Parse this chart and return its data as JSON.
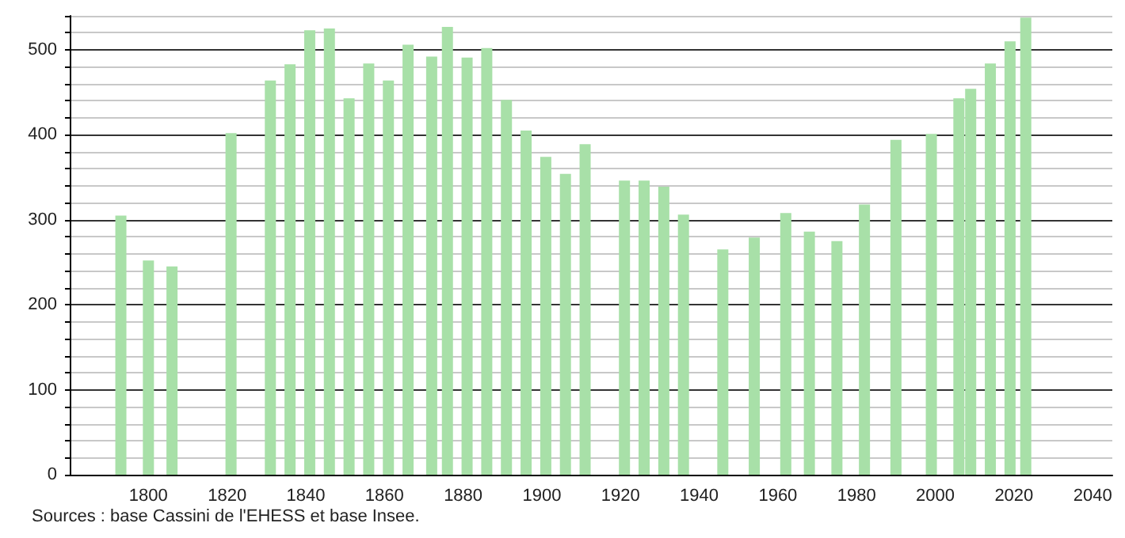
{
  "chart_data": {
    "type": "bar",
    "x": [
      1793,
      1800,
      1806,
      1821,
      1831,
      1836,
      1841,
      1846,
      1851,
      1856,
      1861,
      1866,
      1872,
      1876,
      1881,
      1886,
      1891,
      1896,
      1901,
      1906,
      1911,
      1921,
      1926,
      1931,
      1936,
      1946,
      1954,
      1962,
      1968,
      1975,
      1982,
      1990,
      1999,
      2006,
      2009,
      2014,
      2019,
      2023
    ],
    "values": [
      305,
      252,
      245,
      402,
      464,
      483,
      523,
      525,
      443,
      484,
      464,
      506,
      492,
      527,
      491,
      502,
      441,
      405,
      374,
      354,
      389,
      346,
      346,
      339,
      306,
      265,
      279,
      308,
      286,
      275,
      318,
      394,
      401,
      443,
      454,
      484,
      510,
      538
    ],
    "color": "#a8e0a8",
    "xlim": [
      1780,
      2045
    ],
    "xticks": [
      1800,
      1820,
      1840,
      1860,
      1880,
      1900,
      1920,
      1940,
      1960,
      1980,
      2000,
      2020,
      2040
    ],
    "ylim": [
      0,
      540
    ],
    "yticks": [
      0,
      {
        "value": 20,
        "label": null
      },
      {
        "value": 40,
        "label": null
      },
      {
        "value": 60,
        "label": null
      },
      {
        "value": 80,
        "label": null
      },
      100,
      {
        "value": 120,
        "label": null
      },
      {
        "value": 140,
        "label": null
      },
      {
        "value": 160,
        "label": null
      },
      {
        "value": 180,
        "label": null
      },
      200,
      {
        "value": 220,
        "label": null
      },
      {
        "value": 240,
        "label": null
      },
      {
        "value": 260,
        "label": null
      },
      {
        "value": 280,
        "label": null
      },
      300,
      {
        "value": 320,
        "label": null
      },
      {
        "value": 340,
        "label": null
      },
      {
        "value": 360,
        "label": null
      },
      {
        "value": 380,
        "label": null
      },
      400,
      {
        "value": 420,
        "label": null
      },
      {
        "value": 440,
        "label": null
      },
      {
        "value": 460,
        "label": null
      },
      {
        "value": 480,
        "label": null
      },
      500,
      {
        "value": 520,
        "label": null
      },
      {
        "value": 540,
        "label": null
      }
    ],
    "grid": "y",
    "annotations": [
      "Sources : base Cassini de l'EHESS et base Insee."
    ]
  }
}
